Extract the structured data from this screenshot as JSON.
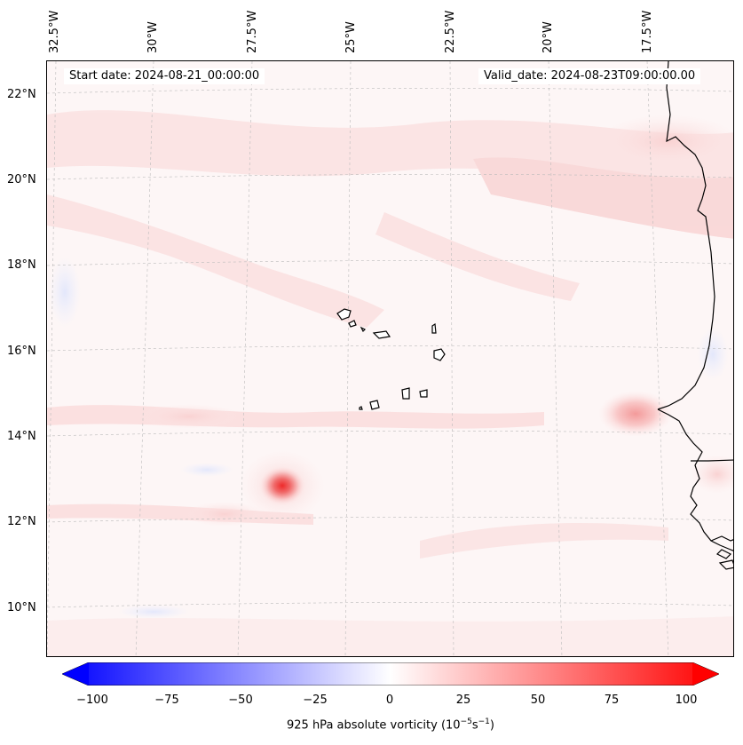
{
  "map": {
    "start_date": "Start date: 2024-08-21_00:00:00",
    "valid_date": "Valid_date: 2024-08-23T09:00:00.00",
    "lon_labels": [
      "32.5°W",
      "30°W",
      "27.5°W",
      "25°W",
      "22.5°W",
      "20°W",
      "17.5°W"
    ],
    "lat_labels": [
      "22°N",
      "20°N",
      "18°N",
      "16°N",
      "14°N",
      "12°N",
      "10°N"
    ],
    "colors": {
      "background": "#fdf6f6",
      "weak_positive": "#fde8e8",
      "moderate_positive": "#f9c8c8",
      "strong_positive": "#f06a6a",
      "peak_positive": "#ee2a2a",
      "weak_negative": "#eef0fd",
      "coastline": "#000000",
      "gridline": "#bbbbbb"
    }
  },
  "colorbar": {
    "ticks": [
      "−100",
      "−75",
      "−50",
      "−25",
      "0",
      "25",
      "50",
      "75",
      "100"
    ],
    "label": "925 hPa absolute vorticity (10",
    "label_exp1": "−5",
    "label_mid": "s",
    "label_exp2": "−1",
    "label_end": ")",
    "min_color": "#0000ff",
    "mid_color": "#ffffff",
    "max_color": "#ff0000"
  }
}
